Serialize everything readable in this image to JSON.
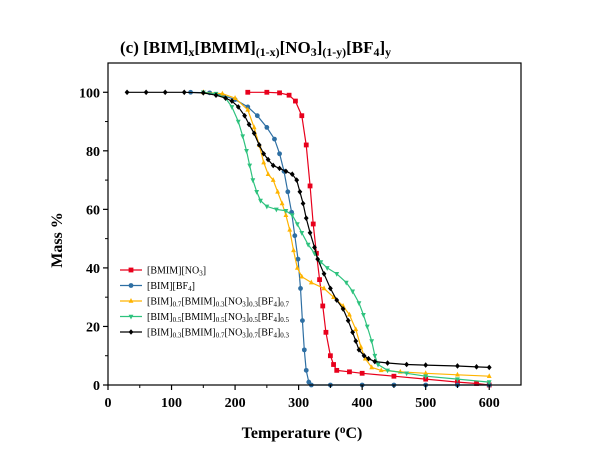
{
  "chart_data": {
    "type": "line",
    "title": {
      "parts": [
        {
          "t": "(c) [BIM]"
        },
        {
          "t": "x",
          "sub": true
        },
        {
          "t": "[BMIM]"
        },
        {
          "t": "(1-x)",
          "sub": true
        },
        {
          "t": "[NO"
        },
        {
          "t": "3",
          "sub": true
        },
        {
          "t": "]"
        },
        {
          "t": "(1-y)",
          "sub": true
        },
        {
          "t": "[BF"
        },
        {
          "t": "4",
          "sub": true
        },
        {
          "t": "]"
        },
        {
          "t": "y",
          "sub": true
        }
      ]
    },
    "xlabel": {
      "parts": [
        {
          "t": "Temperature ("
        },
        {
          "t": "o",
          "sup": true
        },
        {
          "t": "C)"
        }
      ]
    },
    "ylabel": "Mass %",
    "xlim": [
      0,
      650
    ],
    "ylim": [
      0,
      110
    ],
    "xticks": [
      0,
      100,
      200,
      300,
      400,
      500,
      600
    ],
    "yticks": [
      0,
      20,
      40,
      60,
      80,
      100
    ],
    "grid": false,
    "legend": {
      "position": "lower-left"
    },
    "series": [
      {
        "key": "bmim-no3",
        "color": "#e8001c",
        "marker": "square",
        "label_parts": [
          {
            "t": "[BMIM][NO"
          },
          {
            "t": "3",
            "sub": true
          },
          {
            "t": "]"
          }
        ],
        "points": [
          [
            220,
            100
          ],
          [
            250,
            100
          ],
          [
            270,
            99.8
          ],
          [
            285,
            99
          ],
          [
            295,
            97
          ],
          [
            305,
            92
          ],
          [
            312,
            82
          ],
          [
            318,
            68
          ],
          [
            323,
            55
          ],
          [
            328,
            45
          ],
          [
            333,
            36
          ],
          [
            338,
            27
          ],
          [
            343,
            18
          ],
          [
            350,
            10
          ],
          [
            355,
            7
          ],
          [
            360,
            5
          ],
          [
            380,
            4.5
          ],
          [
            400,
            4
          ],
          [
            450,
            3
          ],
          [
            500,
            2
          ],
          [
            550,
            1
          ],
          [
            580,
            0.5
          ],
          [
            600,
            0
          ]
        ]
      },
      {
        "key": "bim-bf4",
        "color": "#2e6fa3",
        "marker": "circle",
        "label_parts": [
          {
            "t": "[BIM][BF"
          },
          {
            "t": "4",
            "sub": true
          },
          {
            "t": "]"
          }
        ],
        "points": [
          [
            130,
            100
          ],
          [
            160,
            99.8
          ],
          [
            180,
            99
          ],
          [
            200,
            97.5
          ],
          [
            220,
            95
          ],
          [
            235,
            92
          ],
          [
            250,
            88
          ],
          [
            262,
            84
          ],
          [
            270,
            79
          ],
          [
            277,
            73
          ],
          [
            283,
            66
          ],
          [
            289,
            59
          ],
          [
            294,
            51
          ],
          [
            299,
            43
          ],
          [
            303,
            33
          ],
          [
            306,
            22
          ],
          [
            309,
            12
          ],
          [
            312,
            5
          ],
          [
            316,
            1
          ],
          [
            320,
            0
          ],
          [
            350,
            0
          ],
          [
            400,
            0
          ],
          [
            450,
            0
          ],
          [
            500,
            0
          ],
          [
            550,
            0
          ],
          [
            600,
            0
          ]
        ]
      },
      {
        "key": "mix-07",
        "color": "#ffb400",
        "marker": "triangle-up",
        "label_parts": [
          {
            "t": "[BIM]"
          },
          {
            "t": "0.7",
            "sub": true
          },
          {
            "t": "[BMIM]"
          },
          {
            "t": "0.3",
            "sub": true
          },
          {
            "t": "[NO"
          },
          {
            "t": "3",
            "sub": true
          },
          {
            "t": "]"
          },
          {
            "t": "0.3",
            "sub": true
          },
          {
            "t": "[BF"
          },
          {
            "t": "4",
            "sub": true
          },
          {
            "t": "]"
          },
          {
            "t": "0.7",
            "sub": true
          }
        ],
        "points": [
          [
            150,
            100
          ],
          [
            180,
            99.5
          ],
          [
            200,
            98
          ],
          [
            220,
            94
          ],
          [
            230,
            88
          ],
          [
            238,
            82
          ],
          [
            245,
            76
          ],
          [
            252,
            72
          ],
          [
            260,
            70
          ],
          [
            267,
            66
          ],
          [
            274,
            62
          ],
          [
            280,
            58
          ],
          [
            286,
            53
          ],
          [
            292,
            46
          ],
          [
            298,
            40
          ],
          [
            305,
            37
          ],
          [
            320,
            35
          ],
          [
            340,
            33
          ],
          [
            355,
            30
          ],
          [
            370,
            27
          ],
          [
            380,
            24
          ],
          [
            390,
            19
          ],
          [
            398,
            13
          ],
          [
            405,
            9
          ],
          [
            415,
            6
          ],
          [
            430,
            5
          ],
          [
            460,
            4.5
          ],
          [
            500,
            4
          ],
          [
            550,
            3.5
          ],
          [
            600,
            3
          ]
        ]
      },
      {
        "key": "mix-05",
        "color": "#2ec27e",
        "marker": "triangle-down",
        "label_parts": [
          {
            "t": "[BIM]"
          },
          {
            "t": "0.5",
            "sub": true
          },
          {
            "t": "[BMIM]"
          },
          {
            "t": "0.5",
            "sub": true
          },
          {
            "t": "[NO"
          },
          {
            "t": "3",
            "sub": true
          },
          {
            "t": "]"
          },
          {
            "t": "0.5",
            "sub": true
          },
          {
            "t": "[BF"
          },
          {
            "t": "4",
            "sub": true
          },
          {
            "t": "]"
          },
          {
            "t": "0.5",
            "sub": true
          }
        ],
        "points": [
          [
            150,
            100
          ],
          [
            170,
            99.5
          ],
          [
            185,
            98
          ],
          [
            195,
            95
          ],
          [
            205,
            90
          ],
          [
            212,
            85
          ],
          [
            218,
            80
          ],
          [
            223,
            75
          ],
          [
            228,
            70
          ],
          [
            234,
            66
          ],
          [
            240,
            63
          ],
          [
            250,
            61
          ],
          [
            265,
            60
          ],
          [
            280,
            59.5
          ],
          [
            290,
            58
          ],
          [
            298,
            55
          ],
          [
            305,
            52
          ],
          [
            315,
            48
          ],
          [
            325,
            45
          ],
          [
            335,
            42
          ],
          [
            345,
            40
          ],
          [
            360,
            38
          ],
          [
            375,
            35
          ],
          [
            385,
            32
          ],
          [
            395,
            28
          ],
          [
            402,
            24
          ],
          [
            408,
            20
          ],
          [
            415,
            15
          ],
          [
            420,
            10
          ],
          [
            425,
            7
          ],
          [
            440,
            5
          ],
          [
            470,
            4
          ],
          [
            500,
            3
          ],
          [
            550,
            2
          ],
          [
            600,
            1
          ]
        ]
      },
      {
        "key": "mix-03",
        "color": "#000000",
        "marker": "diamond",
        "label_parts": [
          {
            "t": "[BIM]"
          },
          {
            "t": "0.3",
            "sub": true
          },
          {
            "t": "[BMIM]"
          },
          {
            "t": "0.7",
            "sub": true
          },
          {
            "t": "[NO"
          },
          {
            "t": "3",
            "sub": true
          },
          {
            "t": "]"
          },
          {
            "t": "0.7",
            "sub": true
          },
          {
            "t": "[BF"
          },
          {
            "t": "4",
            "sub": true
          },
          {
            "t": "]"
          },
          {
            "t": "0.3",
            "sub": true
          }
        ],
        "points": [
          [
            30,
            100
          ],
          [
            60,
            100
          ],
          [
            90,
            100
          ],
          [
            120,
            100
          ],
          [
            150,
            99.8
          ],
          [
            170,
            99
          ],
          [
            185,
            98
          ],
          [
            195,
            97
          ],
          [
            205,
            95
          ],
          [
            215,
            92
          ],
          [
            222,
            89
          ],
          [
            230,
            86
          ],
          [
            238,
            82
          ],
          [
            245,
            79
          ],
          [
            252,
            77
          ],
          [
            260,
            75
          ],
          [
            270,
            74
          ],
          [
            280,
            73
          ],
          [
            290,
            72
          ],
          [
            297,
            70
          ],
          [
            302,
            66
          ],
          [
            307,
            62
          ],
          [
            312,
            57
          ],
          [
            318,
            52
          ],
          [
            325,
            47
          ],
          [
            330,
            43
          ],
          [
            340,
            38
          ],
          [
            350,
            33
          ],
          [
            360,
            29
          ],
          [
            370,
            26
          ],
          [
            378,
            22
          ],
          [
            385,
            18
          ],
          [
            390,
            15
          ],
          [
            395,
            12
          ],
          [
            403,
            10
          ],
          [
            410,
            9
          ],
          [
            420,
            8
          ],
          [
            440,
            7.5
          ],
          [
            470,
            7
          ],
          [
            500,
            6.8
          ],
          [
            550,
            6.5
          ],
          [
            580,
            6.2
          ],
          [
            600,
            6
          ]
        ]
      }
    ]
  }
}
